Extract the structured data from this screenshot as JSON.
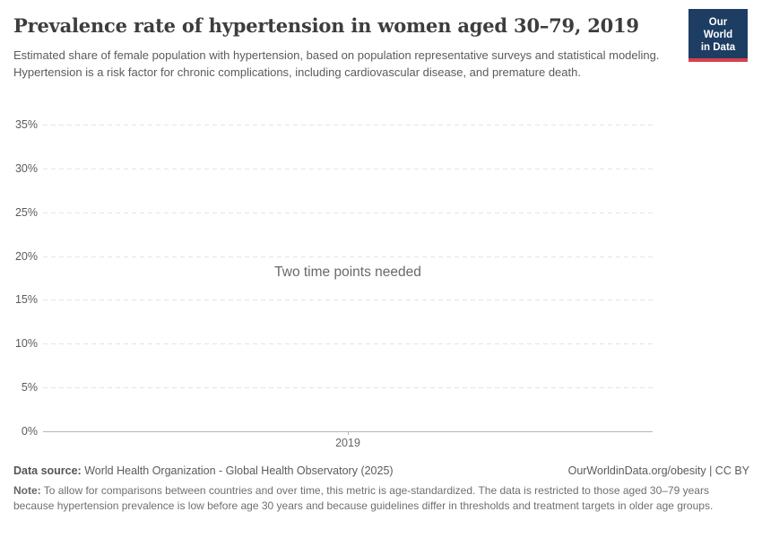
{
  "header": {
    "title": "Prevalence rate of hypertension in women aged 30–79, 2019",
    "subtitle": "Estimated share of female population with hypertension, based on population representative surveys and statistical modeling. Hypertension is a risk factor for chronic complications, including cardiovascular disease, and premature death.",
    "logo": {
      "line1": "Our World",
      "line2": "in Data",
      "bg_color": "#1d3d63",
      "stripe_color": "#d8414f"
    }
  },
  "chart_data": {
    "type": "line",
    "title": "Prevalence rate of hypertension in women aged 30–79, 2019",
    "series": [],
    "empty_message": "Two time points needed",
    "x_tick_labels": [
      "2019"
    ],
    "y_ticks": [
      0,
      5,
      10,
      15,
      20,
      25,
      30,
      35
    ],
    "y_tick_labels": [
      "0%",
      "5%",
      "10%",
      "15%",
      "20%",
      "25%",
      "30%",
      "35%"
    ],
    "ylim": [
      0,
      35
    ],
    "grid": "horizontal dashed",
    "legend": "none",
    "colors": {
      "gridline": "#e4e4e4",
      "axis_line": "#b5b5b5",
      "tick_label": "#5b5b5b"
    }
  },
  "footer": {
    "datasource_label": "Data source:",
    "datasource_text": " World Health Organization - Global Health Observatory (2025)",
    "license_text": "OurWorldinData.org/obesity | CC BY",
    "note_label": "Note:",
    "note_text": " To allow for comparisons between countries and over time, this metric is age-standardized. The data is restricted to those aged 30–79 years because hypertension prevalence is low before age 30 years and because guidelines differ in thresholds and treatment targets in older age groups."
  }
}
